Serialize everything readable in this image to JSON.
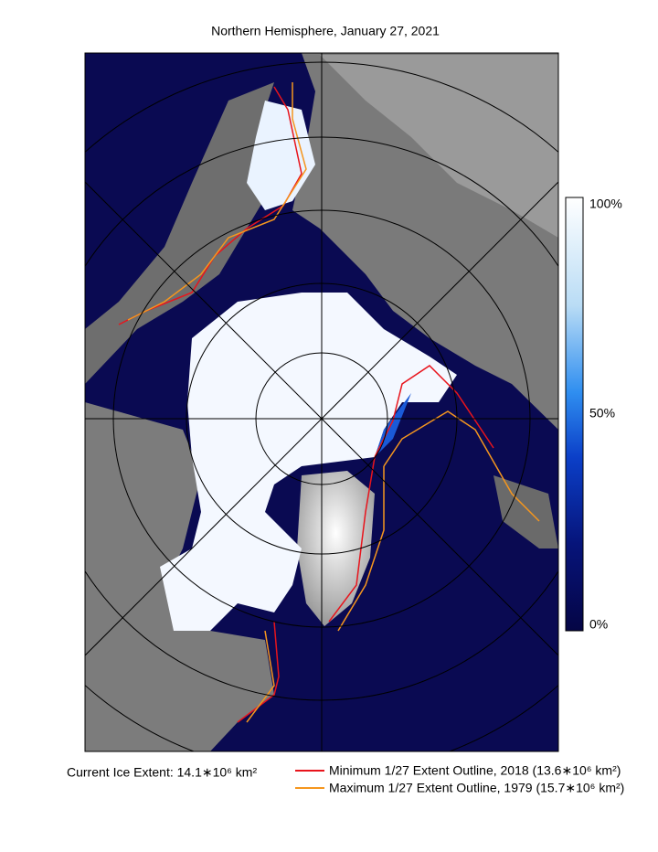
{
  "title": "Northern Hemisphere, January 27, 2021",
  "colorbar": {
    "ticks": [
      "100%",
      "50%",
      "0%"
    ]
  },
  "current_extent": "Current Ice Extent: 14.1∗10⁶ km²",
  "legend": [
    {
      "label": "Minimum 1/27 Extent Outline,  2018  (13.6∗10⁶ km²)",
      "color": "#e8141c"
    },
    {
      "label": "Maximum 1/27 Extent Outline, 1979  (15.7∗10⁶ km²)",
      "color": "#f5961e"
    }
  ]
}
